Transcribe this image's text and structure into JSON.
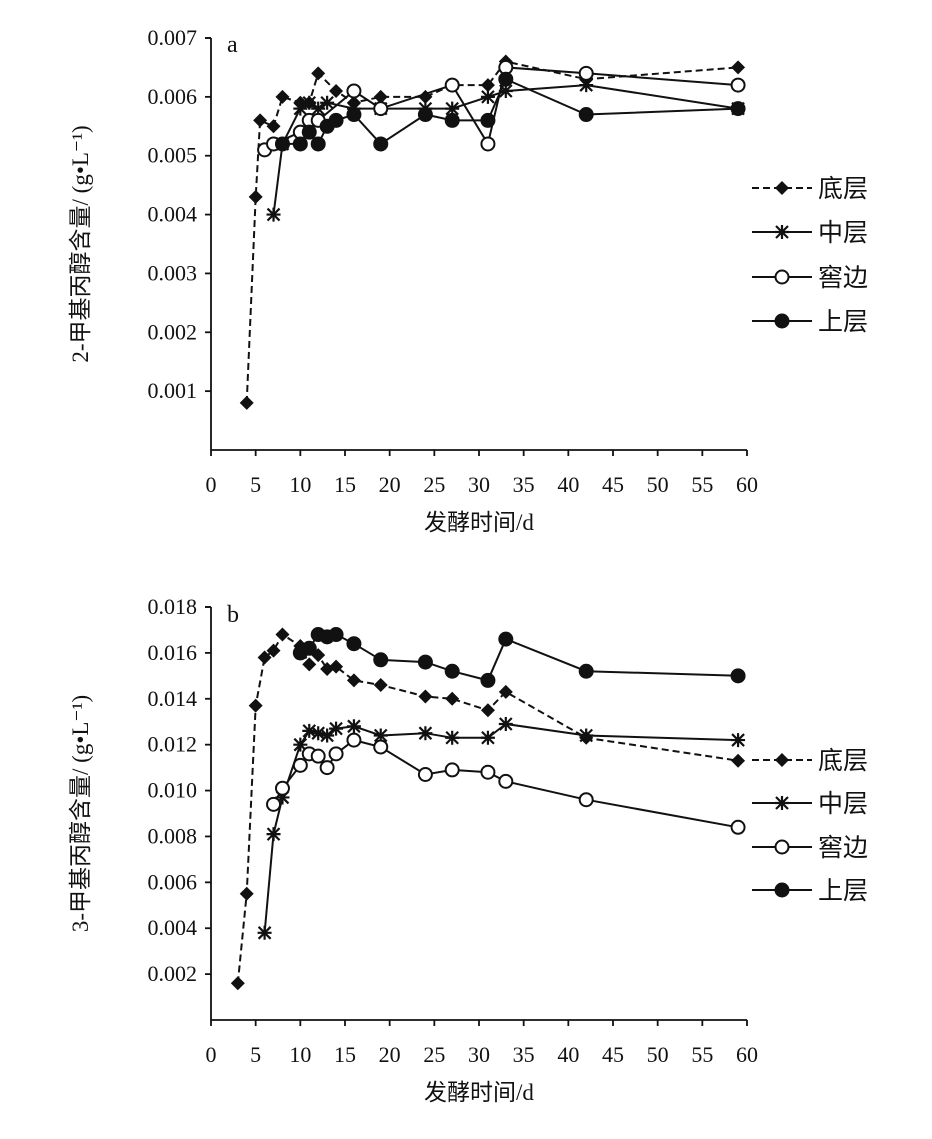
{
  "chart_data": [
    {
      "type": "line",
      "panel_label": "a",
      "xlabel": "发酵时间/d",
      "ylabel": "2-甲基丙醇含量/ (g•L⁻¹)",
      "xlim": [
        0,
        60
      ],
      "ylim": [
        0,
        0.007
      ],
      "xticks": [
        "0",
        "5",
        "10",
        "15",
        "20",
        "25",
        "30",
        "35",
        "40",
        "45",
        "50",
        "55",
        "60"
      ],
      "yticks": [
        "0.001",
        "0.002",
        "0.003",
        "0.004",
        "0.005",
        "0.006",
        "0.007"
      ],
      "legend_position": "right",
      "series": [
        {
          "name": "底层",
          "marker": "diamond",
          "dash": true,
          "points": [
            [
              4,
              0.0008
            ],
            [
              5,
              0.0043
            ],
            [
              5.5,
              0.0056
            ],
            [
              7,
              0.0055
            ],
            [
              8,
              0.006
            ],
            [
              10,
              0.0059
            ],
            [
              11,
              0.0059
            ],
            [
              12,
              0.0064
            ],
            [
              14,
              0.0061
            ],
            [
              16,
              0.0059
            ],
            [
              19,
              0.006
            ],
            [
              24,
              0.006
            ],
            [
              27,
              0.0062
            ],
            [
              31,
              0.0062
            ],
            [
              33,
              0.0066
            ],
            [
              42,
              0.0063
            ],
            [
              59,
              0.0065
            ]
          ]
        },
        {
          "name": "中层",
          "marker": "star",
          "dash": false,
          "points": [
            [
              7,
              0.004
            ],
            [
              8,
              0.0052
            ],
            [
              10,
              0.0058
            ],
            [
              11,
              0.0059
            ],
            [
              12,
              0.0058
            ],
            [
              13,
              0.0059
            ],
            [
              16,
              0.0058
            ],
            [
              19,
              0.0058
            ],
            [
              24,
              0.0058
            ],
            [
              27,
              0.0058
            ],
            [
              31,
              0.006
            ],
            [
              33,
              0.0061
            ],
            [
              42,
              0.0062
            ],
            [
              59,
              0.0058
            ]
          ]
        },
        {
          "name": "窖边",
          "marker": "open-circle",
          "dash": false,
          "points": [
            [
              6,
              0.0051
            ],
            [
              7,
              0.0052
            ],
            [
              10,
              0.0054
            ],
            [
              11,
              0.0056
            ],
            [
              12,
              0.0056
            ],
            [
              16,
              0.0061
            ],
            [
              19,
              0.0058
            ],
            [
              27,
              0.0062
            ],
            [
              31,
              0.0052
            ],
            [
              33,
              0.0065
            ],
            [
              42,
              0.0064
            ],
            [
              59,
              0.0062
            ]
          ]
        },
        {
          "name": "上层",
          "marker": "filled-circle",
          "dash": false,
          "points": [
            [
              8,
              0.0052
            ],
            [
              10,
              0.0052
            ],
            [
              11,
              0.0054
            ],
            [
              12,
              0.0052
            ],
            [
              13,
              0.0055
            ],
            [
              14,
              0.0056
            ],
            [
              16,
              0.0057
            ],
            [
              19,
              0.0052
            ],
            [
              24,
              0.0057
            ],
            [
              27,
              0.0056
            ],
            [
              31,
              0.0056
            ],
            [
              33,
              0.0063
            ],
            [
              42,
              0.0057
            ],
            [
              59,
              0.0058
            ]
          ]
        }
      ]
    },
    {
      "type": "line",
      "panel_label": "b",
      "xlabel": "发酵时间/d",
      "ylabel": "3-甲基丙醇含量/ (g•L⁻¹)",
      "xlim": [
        0,
        60
      ],
      "ylim": [
        0,
        0.018
      ],
      "xticks": [
        "0",
        "5",
        "10",
        "15",
        "20",
        "25",
        "30",
        "35",
        "40",
        "45",
        "50",
        "55",
        "60"
      ],
      "yticks": [
        "0.002",
        "0.004",
        "0.006",
        "0.008",
        "0.010",
        "0.012",
        "0.014",
        "0.016",
        "0.018"
      ],
      "legend_position": "right",
      "series": [
        {
          "name": "底层",
          "marker": "diamond",
          "dash": true,
          "points": [
            [
              3,
              0.0016
            ],
            [
              4,
              0.0055
            ],
            [
              5,
              0.0137
            ],
            [
              6,
              0.0158
            ],
            [
              7,
              0.0161
            ],
            [
              8,
              0.0168
            ],
            [
              10,
              0.0163
            ],
            [
              11,
              0.0155
            ],
            [
              12,
              0.0159
            ],
            [
              13,
              0.0153
            ],
            [
              14,
              0.0154
            ],
            [
              16,
              0.0148
            ],
            [
              19,
              0.0146
            ],
            [
              24,
              0.0141
            ],
            [
              27,
              0.014
            ],
            [
              31,
              0.0135
            ],
            [
              33,
              0.0143
            ],
            [
              42,
              0.0123
            ],
            [
              59,
              0.0113
            ]
          ]
        },
        {
          "name": "中层",
          "marker": "star",
          "dash": false,
          "points": [
            [
              6,
              0.0038
            ],
            [
              7,
              0.0081
            ],
            [
              8,
              0.0097
            ],
            [
              10,
              0.012
            ],
            [
              11,
              0.0126
            ],
            [
              12,
              0.0125
            ],
            [
              13,
              0.0124
            ],
            [
              14,
              0.0127
            ],
            [
              16,
              0.0128
            ],
            [
              19,
              0.0124
            ],
            [
              24,
              0.0125
            ],
            [
              27,
              0.0123
            ],
            [
              31,
              0.0123
            ],
            [
              33,
              0.0129
            ],
            [
              42,
              0.0124
            ],
            [
              59,
              0.0122
            ]
          ]
        },
        {
          "name": "窖边",
          "marker": "open-circle",
          "dash": false,
          "points": [
            [
              7,
              0.0094
            ],
            [
              8,
              0.0101
            ],
            [
              10,
              0.0111
            ],
            [
              11,
              0.0116
            ],
            [
              12,
              0.0115
            ],
            [
              13,
              0.011
            ],
            [
              14,
              0.0116
            ],
            [
              16,
              0.0122
            ],
            [
              19,
              0.0119
            ],
            [
              24,
              0.0107
            ],
            [
              27,
              0.0109
            ],
            [
              31,
              0.0108
            ],
            [
              33,
              0.0104
            ],
            [
              42,
              0.0096
            ],
            [
              59,
              0.0084
            ]
          ]
        },
        {
          "name": "上层",
          "marker": "filled-circle",
          "dash": false,
          "points": [
            [
              10,
              0.016
            ],
            [
              11,
              0.0162
            ],
            [
              12,
              0.0168
            ],
            [
              13,
              0.0167
            ],
            [
              14,
              0.0168
            ],
            [
              16,
              0.0164
            ],
            [
              19,
              0.0157
            ],
            [
              24,
              0.0156
            ],
            [
              27,
              0.0152
            ],
            [
              31,
              0.0148
            ],
            [
              33,
              0.0166
            ],
            [
              42,
              0.0152
            ],
            [
              59,
              0.015
            ]
          ]
        }
      ]
    }
  ]
}
